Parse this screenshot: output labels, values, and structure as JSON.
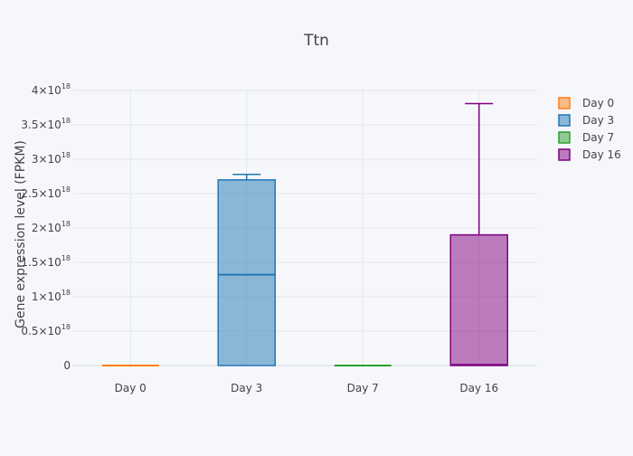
{
  "chart_data": {
    "type": "box",
    "title": "Ttn",
    "xlabel": "",
    "ylabel": "Gene expression level (FPKM)",
    "ylim": [
      0,
      4e+18
    ],
    "y_ticks": [
      {
        "value": 0,
        "mant": "0",
        "exp": ""
      },
      {
        "value": 5e+17,
        "mant": "0.5×10",
        "exp": "18"
      },
      {
        "value": 1e+18,
        "mant": "1×10",
        "exp": "18"
      },
      {
        "value": 1.5e+18,
        "mant": "1.5×10",
        "exp": "18"
      },
      {
        "value": 2e+18,
        "mant": "2×10",
        "exp": "18"
      },
      {
        "value": 2.5e+18,
        "mant": "2.5×10",
        "exp": "18"
      },
      {
        "value": 3e+18,
        "mant": "3×10",
        "exp": "18"
      },
      {
        "value": 3.5e+18,
        "mant": "3.5×10",
        "exp": "18"
      },
      {
        "value": 4e+18,
        "mant": "4×10",
        "exp": "18"
      }
    ],
    "categories": [
      "Day 0",
      "Day 3",
      "Day 7",
      "Day 16"
    ],
    "grid": true,
    "legend_position": "top-right",
    "series": [
      {
        "name": "Day 0",
        "color": "#ff7f0e",
        "min": 0,
        "q1": 0,
        "median": 0,
        "q3": 0,
        "max": 0
      },
      {
        "name": "Day 3",
        "color": "#1f77b4",
        "min": 0,
        "q1": 0,
        "median": 1.32e+18,
        "q3": 2.7e+18,
        "max": 2.78e+18
      },
      {
        "name": "Day 7",
        "color": "#2ca02c",
        "min": 0,
        "q1": 0,
        "median": 0,
        "q3": 0,
        "max": 0
      },
      {
        "name": "Day 16",
        "color": "#800080",
        "min": 0,
        "q1": 0,
        "median": 1e+16,
        "q3": 1.9e+18,
        "max": 3.81e+18
      }
    ]
  }
}
